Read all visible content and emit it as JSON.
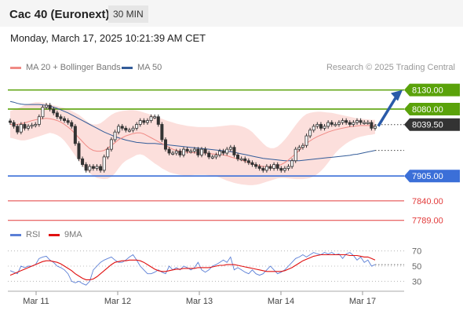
{
  "header": {
    "title": "Cac 40 (Euronext)",
    "interval": "30 MIN"
  },
  "datetime": "Monday, March 17, 2025 10:21:39 AM CET",
  "legend": {
    "ma20": "MA 20 + Bollinger Bands",
    "ma50": "MA 50",
    "credit": "Research © 2025 Trading Central",
    "ma20_color": "#f08a85",
    "ma50_color": "#335c99"
  },
  "rsi_legend": {
    "rsi": "RSI",
    "ma9": "9MA",
    "rsi_color": "#5b7fd6",
    "ma9_color": "#e01010"
  },
  "chart_data": [
    {
      "type": "candlestick",
      "title": "",
      "x_labels": [
        "Mar 11",
        "Mar 12",
        "Mar 13",
        "Mar 14",
        "Mar 17"
      ],
      "ylim": [
        7770,
        8160
      ],
      "last_price": "8039.50",
      "levels": [
        {
          "label": "8130.00",
          "value": 8130,
          "kind": "resistance",
          "color": "#5aa20a"
        },
        {
          "label": "8080.00",
          "value": 8080,
          "kind": "resistance",
          "color": "#5aa20a"
        },
        {
          "label": "7905.00",
          "value": 7905,
          "kind": "pivot",
          "color": "#3b6fd8"
        },
        {
          "label": "7840.00",
          "value": 7840,
          "kind": "support",
          "color": "#e23b3b"
        },
        {
          "label": "7789.00",
          "value": 7789,
          "kind": "support",
          "color": "#e23b3b"
        }
      ],
      "price": [
        8045,
        8035,
        8020,
        8040,
        8030,
        8035,
        8038,
        8040,
        8060,
        8085,
        8090,
        8080,
        8070,
        8060,
        8055,
        8050,
        8045,
        8035,
        7990,
        7950,
        7935,
        7920,
        7930,
        7925,
        7930,
        7920,
        7955,
        7975,
        8000,
        8020,
        8035,
        8030,
        8025,
        8025,
        8030,
        8040,
        8050,
        8045,
        8050,
        8060,
        8060,
        8040,
        8000,
        7975,
        7965,
        7965,
        7970,
        7960,
        7975,
        7970,
        7970,
        7975,
        7960,
        7975,
        7965,
        7955,
        7955,
        7960,
        7970,
        7965,
        7975,
        7980,
        7960,
        7950,
        7950,
        7945,
        7940,
        7935,
        7930,
        7925,
        7920,
        7930,
        7925,
        7935,
        7925,
        7920,
        7925,
        7930,
        7945,
        7975,
        7980,
        7985,
        8010,
        8025,
        8035,
        8040,
        8030,
        8035,
        8045,
        8040,
        8040,
        8045,
        8050,
        8045,
        8040,
        8045,
        8050,
        8045,
        8045,
        8045,
        8030,
        8035
      ],
      "ma20": [
        8040,
        8040,
        8040,
        8042,
        8044,
        8047,
        8050,
        8052,
        8054,
        8055,
        8056,
        8055,
        8053,
        8050,
        8046,
        8040,
        8033,
        8025,
        8015,
        8005,
        7995,
        7985,
        7977,
        7972,
        7970,
        7970,
        7972,
        7978,
        7985,
        7992,
        8000,
        8005,
        8010,
        8013,
        8016,
        8018,
        8018,
        8015,
        8010,
        8005,
        8000,
        7995,
        7990,
        7985,
        7980,
        7975,
        7972,
        7970,
        7968,
        7967,
        7966,
        7966,
        7965,
        7965,
        7965,
        7964,
        7963,
        7962,
        7961,
        7960,
        7958,
        7955,
        7952,
        7950,
        7947,
        7943,
        7940,
        7937,
        7934,
        7932,
        7930,
        7930,
        7930,
        7931,
        7932,
        7935,
        7940,
        7947,
        7955,
        7963,
        7972,
        7982,
        7990,
        7997,
        8003,
        8008,
        8012,
        8016,
        8020,
        8023,
        8026,
        8028,
        8030,
        8032,
        8034,
        8035,
        8036,
        8037,
        8037,
        8037,
        8036,
        8036
      ],
      "bb_upper": [
        8075,
        8078,
        8082,
        8086,
        8090,
        8093,
        8096,
        8098,
        8098,
        8097,
        8095,
        8092,
        8090,
        8088,
        8085,
        8083,
        8080,
        8075,
        8070,
        8065,
        8058,
        8050,
        8043,
        8040,
        8040,
        8043,
        8050,
        8058,
        8065,
        8070,
        8073,
        8075,
        8076,
        8077,
        8077,
        8076,
        8074,
        8071,
        8068,
        8065,
        8062,
        8058,
        8055,
        8051,
        8048,
        8045,
        8042,
        8040,
        8038,
        8036,
        8035,
        8034,
        8033,
        8033,
        8033,
        8033,
        8033,
        8034,
        8035,
        8036,
        8037,
        8038,
        8038,
        8037,
        8035,
        8032,
        8027,
        8020,
        8010,
        8000,
        7990,
        7982,
        7978,
        7978,
        7982,
        7990,
        8000,
        8012,
        8025,
        8038,
        8050,
        8060,
        8067,
        8070,
        8072,
        8073,
        8073,
        8072,
        8071,
        8070,
        8068,
        8066,
        8064,
        8062,
        8060,
        8058,
        8056,
        8055,
        8054,
        8053,
        8052,
        8052
      ],
      "bb_lower": [
        8005,
        8003,
        8000,
        7998,
        7998,
        8000,
        8003,
        8006,
        8009,
        8012,
        8015,
        8018,
        8016,
        8012,
        8006,
        7997,
        7985,
        7972,
        7958,
        7945,
        7932,
        7920,
        7912,
        7905,
        7900,
        7898,
        7897,
        7898,
        7903,
        7912,
        7925,
        7937,
        7945,
        7950,
        7955,
        7960,
        7962,
        7959,
        7952,
        7945,
        7938,
        7932,
        7925,
        7920,
        7915,
        7912,
        7910,
        7908,
        7907,
        7907,
        7907,
        7908,
        7908,
        7908,
        7908,
        7907,
        7906,
        7904,
        7901,
        7897,
        7893,
        7890,
        7887,
        7885,
        7883,
        7882,
        7881,
        7881,
        7882,
        7884,
        7887,
        7890,
        7893,
        7896,
        7899,
        7900,
        7900,
        7899,
        7898,
        7897,
        7897,
        7897,
        7898,
        7900,
        7904,
        7910,
        7918,
        7928,
        7940,
        7953,
        7965,
        7975,
        7983,
        7990,
        7996,
        8001,
        8005,
        8008,
        8010,
        8012,
        8013,
        8015
      ],
      "ma50": [
        8100,
        8098,
        8095,
        8093,
        8092,
        8092,
        8092,
        8092,
        8092,
        8091,
        8090,
        8088,
        8085,
        8082,
        8078,
        8074,
        8070,
        8065,
        8060,
        8055,
        8050,
        8045,
        8040,
        8035,
        8030,
        8025,
        8020,
        8016,
        8012,
        8008,
        8005,
        8002,
        7999,
        7997,
        7995,
        7993,
        7992,
        7991,
        7990,
        7990,
        7990,
        7989,
        7988,
        7987,
        7986,
        7985,
        7984,
        7983,
        7982,
        7981,
        7980,
        7979,
        7978,
        7977,
        7976,
        7975,
        7974,
        7973,
        7972,
        7971,
        7970,
        7969,
        7967,
        7965,
        7963,
        7961,
        7959,
        7957,
        7955,
        7953,
        7951,
        7950,
        7949,
        7948,
        7947,
        7946,
        7945,
        7945,
        7945,
        7945,
        7945,
        7946,
        7947,
        7948,
        7949,
        7950,
        7951,
        7952,
        7953,
        7954,
        7955,
        7956,
        7957,
        7958,
        7959,
        7961,
        7962,
        7964,
        7966,
        7968,
        7970,
        7972
      ]
    },
    {
      "type": "line",
      "title": "RSI",
      "x_labels": [
        "Mar 11",
        "Mar 12",
        "Mar 13",
        "Mar 14",
        "Mar 17"
      ],
      "ylim": [
        20,
        80
      ],
      "yticks": [
        30,
        50,
        70
      ],
      "rsi": [
        44,
        42,
        40,
        50,
        48,
        50,
        50,
        52,
        60,
        62,
        63,
        58,
        55,
        50,
        48,
        45,
        40,
        30,
        28,
        30,
        27,
        25,
        30,
        45,
        50,
        55,
        58,
        60,
        62,
        58,
        55,
        55,
        58,
        62,
        65,
        58,
        50,
        45,
        40,
        40,
        42,
        45,
        42,
        40,
        50,
        45,
        48,
        45,
        50,
        48,
        45,
        48,
        55,
        45,
        42,
        45,
        50,
        52,
        55,
        58,
        55,
        62,
        45,
        48,
        45,
        42,
        40,
        45,
        40,
        38,
        40,
        45,
        50,
        45,
        40,
        42,
        45,
        50,
        55,
        60,
        62,
        65,
        62,
        65,
        68,
        66,
        65,
        68,
        66,
        68,
        65,
        66,
        60,
        66,
        68,
        64,
        58,
        62,
        55,
        58,
        50,
        52
      ],
      "ma9": [
        38,
        40,
        42,
        44,
        46,
        48,
        50,
        52,
        54,
        56,
        57,
        57,
        56,
        55,
        53,
        50,
        47,
        44,
        40,
        37,
        34,
        32,
        32,
        33,
        36,
        40,
        44,
        48,
        52,
        55,
        56,
        57,
        57,
        58,
        58,
        58,
        57,
        55,
        52,
        49,
        46,
        44,
        43,
        43,
        44,
        45,
        46,
        46,
        47,
        47,
        47,
        47,
        48,
        48,
        48,
        48,
        49,
        50,
        51,
        51,
        52,
        52,
        52,
        51,
        50,
        49,
        48,
        47,
        46,
        45,
        44,
        43,
        43,
        43,
        43,
        43,
        44,
        46,
        48,
        51,
        54,
        57,
        59,
        61,
        63,
        64,
        65,
        65,
        65,
        65,
        65,
        65,
        65,
        65,
        64,
        64,
        64,
        63,
        62,
        62,
        60,
        58
      ]
    }
  ]
}
